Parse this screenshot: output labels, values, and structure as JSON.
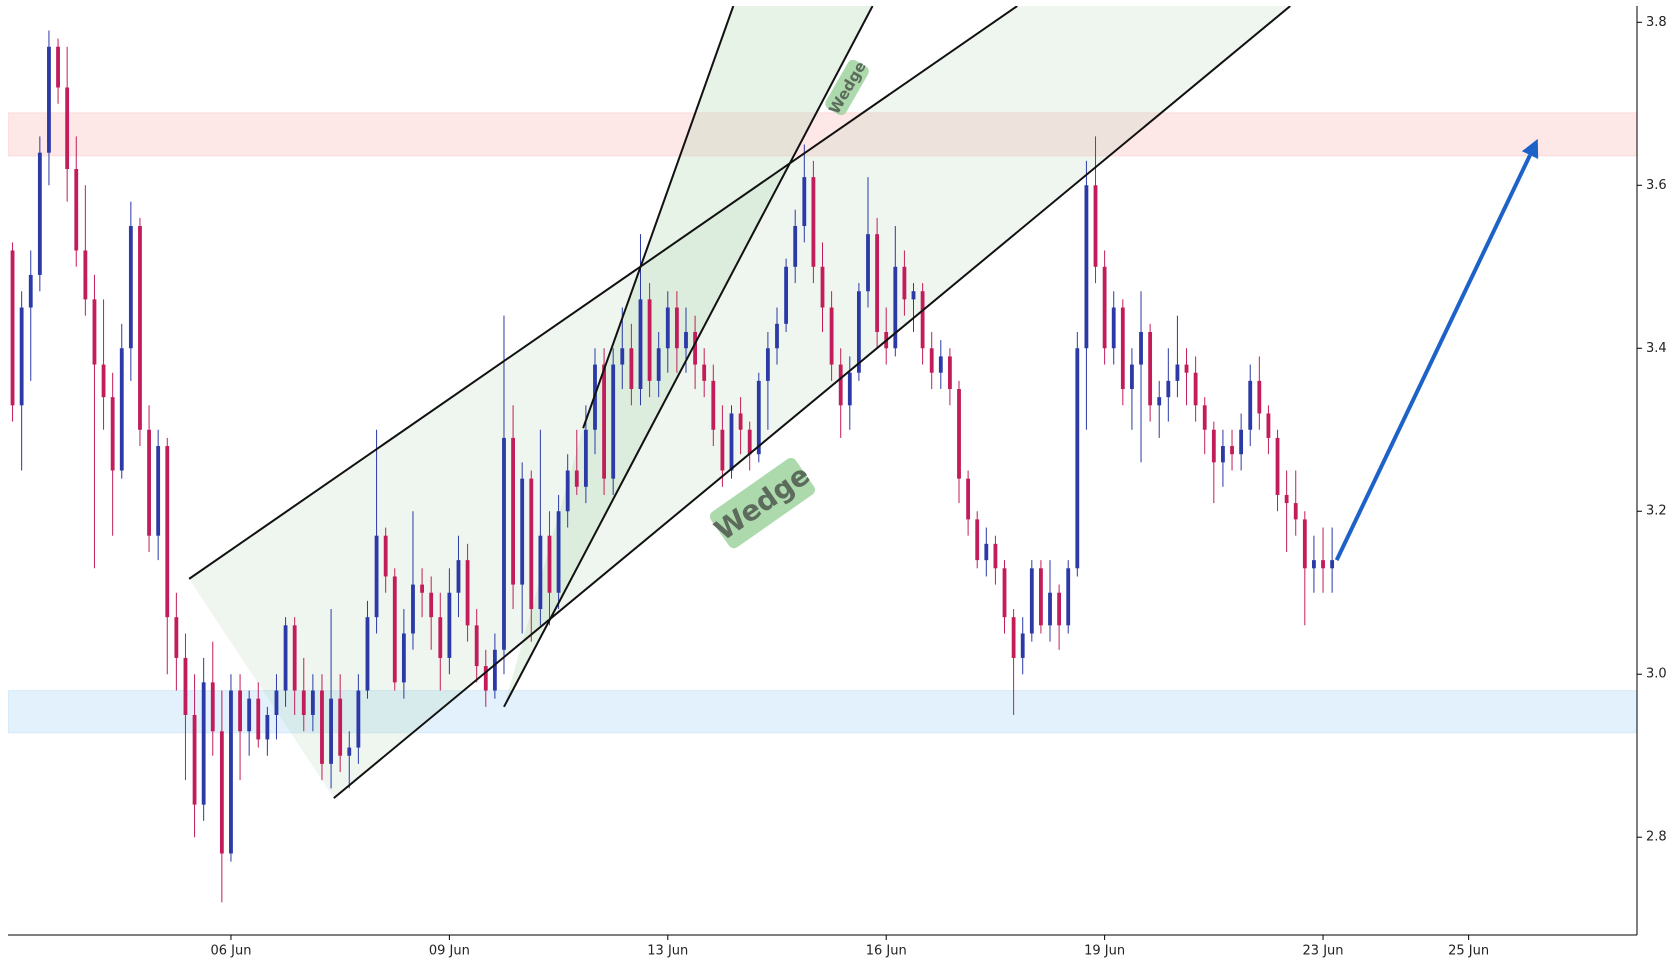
{
  "chart_data": {
    "type": "candlestick",
    "up_color": "#2b3aa6",
    "down_color": "#c21d5a",
    "ohlc": [
      [
        3.52,
        3.53,
        3.31,
        3.33
      ],
      [
        3.33,
        3.47,
        3.25,
        3.45
      ],
      [
        3.45,
        3.52,
        3.36,
        3.49
      ],
      [
        3.49,
        3.66,
        3.47,
        3.64
      ],
      [
        3.64,
        3.79,
        3.6,
        3.77
      ],
      [
        3.77,
        3.78,
        3.7,
        3.72
      ],
      [
        3.72,
        3.77,
        3.58,
        3.62
      ],
      [
        3.62,
        3.66,
        3.5,
        3.52
      ],
      [
        3.52,
        3.6,
        3.44,
        3.46
      ],
      [
        3.46,
        3.49,
        3.13,
        3.38
      ],
      [
        3.38,
        3.46,
        3.3,
        3.34
      ],
      [
        3.34,
        3.37,
        3.17,
        3.25
      ],
      [
        3.25,
        3.43,
        3.24,
        3.4
      ],
      [
        3.4,
        3.58,
        3.36,
        3.55
      ],
      [
        3.55,
        3.56,
        3.28,
        3.3
      ],
      [
        3.3,
        3.33,
        3.15,
        3.17
      ],
      [
        3.17,
        3.3,
        3.14,
        3.28
      ],
      [
        3.28,
        3.29,
        3.0,
        3.07
      ],
      [
        3.07,
        3.1,
        2.98,
        3.02
      ],
      [
        3.02,
        3.05,
        2.87,
        2.95
      ],
      [
        2.95,
        3.0,
        2.8,
        2.84
      ],
      [
        2.84,
        3.02,
        2.82,
        2.99
      ],
      [
        2.99,
        3.04,
        2.9,
        2.93
      ],
      [
        2.93,
        2.98,
        2.72,
        2.78
      ],
      [
        2.78,
        3.0,
        2.77,
        2.98
      ],
      [
        2.98,
        3.0,
        2.87,
        2.93
      ],
      [
        2.93,
        2.98,
        2.9,
        2.97
      ],
      [
        2.97,
        2.99,
        2.91,
        2.92
      ],
      [
        2.92,
        2.96,
        2.9,
        2.95
      ],
      [
        2.95,
        3.0,
        2.92,
        2.98
      ],
      [
        2.98,
        3.07,
        2.96,
        3.06
      ],
      [
        3.06,
        3.07,
        2.95,
        2.98
      ],
      [
        2.98,
        3.02,
        2.93,
        2.95
      ],
      [
        2.95,
        3.0,
        2.93,
        2.98
      ],
      [
        2.98,
        3.0,
        2.87,
        2.89
      ],
      [
        2.89,
        3.08,
        2.86,
        2.97
      ],
      [
        2.97,
        3.0,
        2.88,
        2.9
      ],
      [
        2.9,
        2.93,
        2.86,
        2.91
      ],
      [
        2.91,
        3.0,
        2.89,
        2.98
      ],
      [
        2.98,
        3.09,
        2.97,
        3.07
      ],
      [
        3.07,
        3.3,
        3.05,
        3.17
      ],
      [
        3.17,
        3.18,
        3.1,
        3.12
      ],
      [
        3.12,
        3.13,
        2.98,
        2.99
      ],
      [
        2.99,
        3.08,
        2.97,
        3.05
      ],
      [
        3.05,
        3.2,
        3.03,
        3.11
      ],
      [
        3.11,
        3.13,
        3.07,
        3.1
      ],
      [
        3.1,
        3.12,
        3.03,
        3.07
      ],
      [
        3.07,
        3.1,
        2.98,
        3.02
      ],
      [
        3.02,
        3.13,
        3.0,
        3.1
      ],
      [
        3.1,
        3.17,
        3.07,
        3.14
      ],
      [
        3.14,
        3.16,
        3.04,
        3.06
      ],
      [
        3.06,
        3.08,
        2.99,
        3.01
      ],
      [
        3.01,
        3.03,
        2.96,
        2.98
      ],
      [
        2.98,
        3.05,
        2.97,
        3.03
      ],
      [
        3.03,
        3.44,
        3.0,
        3.29
      ],
      [
        3.29,
        3.33,
        3.08,
        3.11
      ],
      [
        3.11,
        3.26,
        3.05,
        3.24
      ],
      [
        3.24,
        3.25,
        3.04,
        3.08
      ],
      [
        3.08,
        3.3,
        3.06,
        3.17
      ],
      [
        3.17,
        3.2,
        3.06,
        3.1
      ],
      [
        3.1,
        3.22,
        3.08,
        3.2
      ],
      [
        3.2,
        3.27,
        3.18,
        3.25
      ],
      [
        3.25,
        3.3,
        3.22,
        3.23
      ],
      [
        3.23,
        3.33,
        3.21,
        3.3
      ],
      [
        3.3,
        3.4,
        3.27,
        3.38
      ],
      [
        3.38,
        3.4,
        3.22,
        3.24
      ],
      [
        3.24,
        3.4,
        3.22,
        3.38
      ],
      [
        3.38,
        3.45,
        3.35,
        3.4
      ],
      [
        3.4,
        3.43,
        3.33,
        3.35
      ],
      [
        3.35,
        3.54,
        3.33,
        3.46
      ],
      [
        3.46,
        3.48,
        3.34,
        3.36
      ],
      [
        3.36,
        3.42,
        3.34,
        3.4
      ],
      [
        3.4,
        3.47,
        3.37,
        3.45
      ],
      [
        3.45,
        3.47,
        3.37,
        3.4
      ],
      [
        3.4,
        3.45,
        3.37,
        3.42
      ],
      [
        3.42,
        3.44,
        3.35,
        3.38
      ],
      [
        3.38,
        3.4,
        3.34,
        3.36
      ],
      [
        3.36,
        3.38,
        3.28,
        3.3
      ],
      [
        3.3,
        3.33,
        3.23,
        3.25
      ],
      [
        3.25,
        3.33,
        3.24,
        3.32
      ],
      [
        3.32,
        3.34,
        3.27,
        3.3
      ],
      [
        3.3,
        3.31,
        3.25,
        3.27
      ],
      [
        3.27,
        3.37,
        3.26,
        3.36
      ],
      [
        3.36,
        3.42,
        3.3,
        3.4
      ],
      [
        3.4,
        3.45,
        3.38,
        3.43
      ],
      [
        3.43,
        3.51,
        3.42,
        3.5
      ],
      [
        3.5,
        3.57,
        3.48,
        3.55
      ],
      [
        3.55,
        3.65,
        3.53,
        3.61
      ],
      [
        3.61,
        3.63,
        3.48,
        3.5
      ],
      [
        3.5,
        3.53,
        3.42,
        3.45
      ],
      [
        3.45,
        3.47,
        3.36,
        3.38
      ],
      [
        3.38,
        3.4,
        3.29,
        3.33
      ],
      [
        3.33,
        3.39,
        3.3,
        3.37
      ],
      [
        3.37,
        3.48,
        3.36,
        3.47
      ],
      [
        3.47,
        3.61,
        3.45,
        3.54
      ],
      [
        3.54,
        3.56,
        3.4,
        3.42
      ],
      [
        3.42,
        3.45,
        3.38,
        3.4
      ],
      [
        3.4,
        3.55,
        3.39,
        3.5
      ],
      [
        3.5,
        3.52,
        3.44,
        3.46
      ],
      [
        3.46,
        3.48,
        3.42,
        3.47
      ],
      [
        3.47,
        3.48,
        3.38,
        3.4
      ],
      [
        3.4,
        3.42,
        3.35,
        3.37
      ],
      [
        3.37,
        3.41,
        3.35,
        3.39
      ],
      [
        3.39,
        3.4,
        3.33,
        3.35
      ],
      [
        3.35,
        3.36,
        3.21,
        3.24
      ],
      [
        3.24,
        3.25,
        3.17,
        3.19
      ],
      [
        3.19,
        3.2,
        3.13,
        3.14
      ],
      [
        3.14,
        3.18,
        3.12,
        3.16
      ],
      [
        3.16,
        3.17,
        3.11,
        3.13
      ],
      [
        3.13,
        3.14,
        3.05,
        3.07
      ],
      [
        3.07,
        3.08,
        2.95,
        3.02
      ],
      [
        3.02,
        3.07,
        3.0,
        3.05
      ],
      [
        3.05,
        3.14,
        3.04,
        3.13
      ],
      [
        3.13,
        3.14,
        3.05,
        3.06
      ],
      [
        3.06,
        3.14,
        3.04,
        3.1
      ],
      [
        3.1,
        3.11,
        3.03,
        3.06
      ],
      [
        3.06,
        3.14,
        3.05,
        3.13
      ],
      [
        3.13,
        3.42,
        3.12,
        3.4
      ],
      [
        3.4,
        3.63,
        3.3,
        3.6
      ],
      [
        3.6,
        3.66,
        3.48,
        3.5
      ],
      [
        3.5,
        3.52,
        3.38,
        3.4
      ],
      [
        3.4,
        3.47,
        3.38,
        3.45
      ],
      [
        3.45,
        3.46,
        3.33,
        3.35
      ],
      [
        3.35,
        3.4,
        3.3,
        3.38
      ],
      [
        3.38,
        3.47,
        3.26,
        3.42
      ],
      [
        3.42,
        3.43,
        3.31,
        3.33
      ],
      [
        3.33,
        3.36,
        3.29,
        3.34
      ],
      [
        3.34,
        3.4,
        3.31,
        3.36
      ],
      [
        3.36,
        3.44,
        3.34,
        3.38
      ],
      [
        3.38,
        3.4,
        3.33,
        3.37
      ],
      [
        3.37,
        3.39,
        3.31,
        3.33
      ],
      [
        3.33,
        3.34,
        3.27,
        3.3
      ],
      [
        3.3,
        3.31,
        3.21,
        3.26
      ],
      [
        3.26,
        3.3,
        3.23,
        3.28
      ],
      [
        3.28,
        3.3,
        3.25,
        3.27
      ],
      [
        3.27,
        3.32,
        3.25,
        3.3
      ],
      [
        3.3,
        3.38,
        3.28,
        3.36
      ],
      [
        3.36,
        3.39,
        3.3,
        3.32
      ],
      [
        3.32,
        3.33,
        3.27,
        3.29
      ],
      [
        3.29,
        3.3,
        3.2,
        3.22
      ],
      [
        3.22,
        3.25,
        3.15,
        3.21
      ],
      [
        3.21,
        3.25,
        3.17,
        3.19
      ],
      [
        3.19,
        3.2,
        3.06,
        3.13
      ],
      [
        3.13,
        3.17,
        3.1,
        3.14
      ],
      [
        3.14,
        3.18,
        3.1,
        3.13
      ],
      [
        3.13,
        3.18,
        3.1,
        3.14
      ]
    ],
    "xlim": [
      -0.5,
      178.5
    ],
    "xticks": [
      {
        "value": 24,
        "label": "06 Jun"
      },
      {
        "value": 48,
        "label": "09 Jun"
      },
      {
        "value": 72,
        "label": "13 Jun"
      },
      {
        "value": 96,
        "label": "16 Jun"
      },
      {
        "value": 120,
        "label": "19 Jun"
      },
      {
        "value": 144,
        "label": "23 Jun"
      },
      {
        "value": 160,
        "label": "25 Jun"
      }
    ],
    "ylim": [
      2.68,
      3.82
    ],
    "yticks": [
      2.8,
      {
        "value": 3,
        "label": "3.0"
      },
      3.2,
      3.4,
      3.6,
      3.8
    ],
    "zones": [
      {
        "range": [
          3.636,
          3.689
        ],
        "color": "rgba(250,170,170,0.28)"
      },
      {
        "range": [
          2.928,
          2.98
        ],
        "color": "rgba(140,200,240,0.25)"
      }
    ],
    "channels": [
      {
        "lines": [
          0,
          1
        ],
        "color": "rgba(180,215,180,0.22)"
      },
      {
        "lines": [
          2,
          3
        ],
        "color": "rgba(180,215,180,0.3)"
      }
    ],
    "lines": [
      {
        "start": [
          19.4,
          3.117
        ],
        "end": [
          110.4,
          3.82
        ]
      },
      {
        "start": [
          35.3,
          2.848
        ],
        "end": [
          140.4,
          3.82
        ]
      },
      {
        "start": [
          54.0,
          2.96
        ],
        "end": [
          94.5,
          3.82
        ]
      },
      {
        "start": [
          62.7,
          3.302
        ],
        "end": [
          79.2,
          3.82
        ]
      }
    ],
    "labels": [
      {
        "text": "Wedge",
        "at": [
          82.4,
          3.21
        ]
      },
      {
        "text": "Wedge",
        "at": [
          91.7,
          3.72
        ]
      }
    ],
    "arrow": {
      "start": [
        145.5,
        3.14
      ],
      "end": [
        167.6,
        3.657
      ],
      "color": "#1d62c8"
    }
  }
}
